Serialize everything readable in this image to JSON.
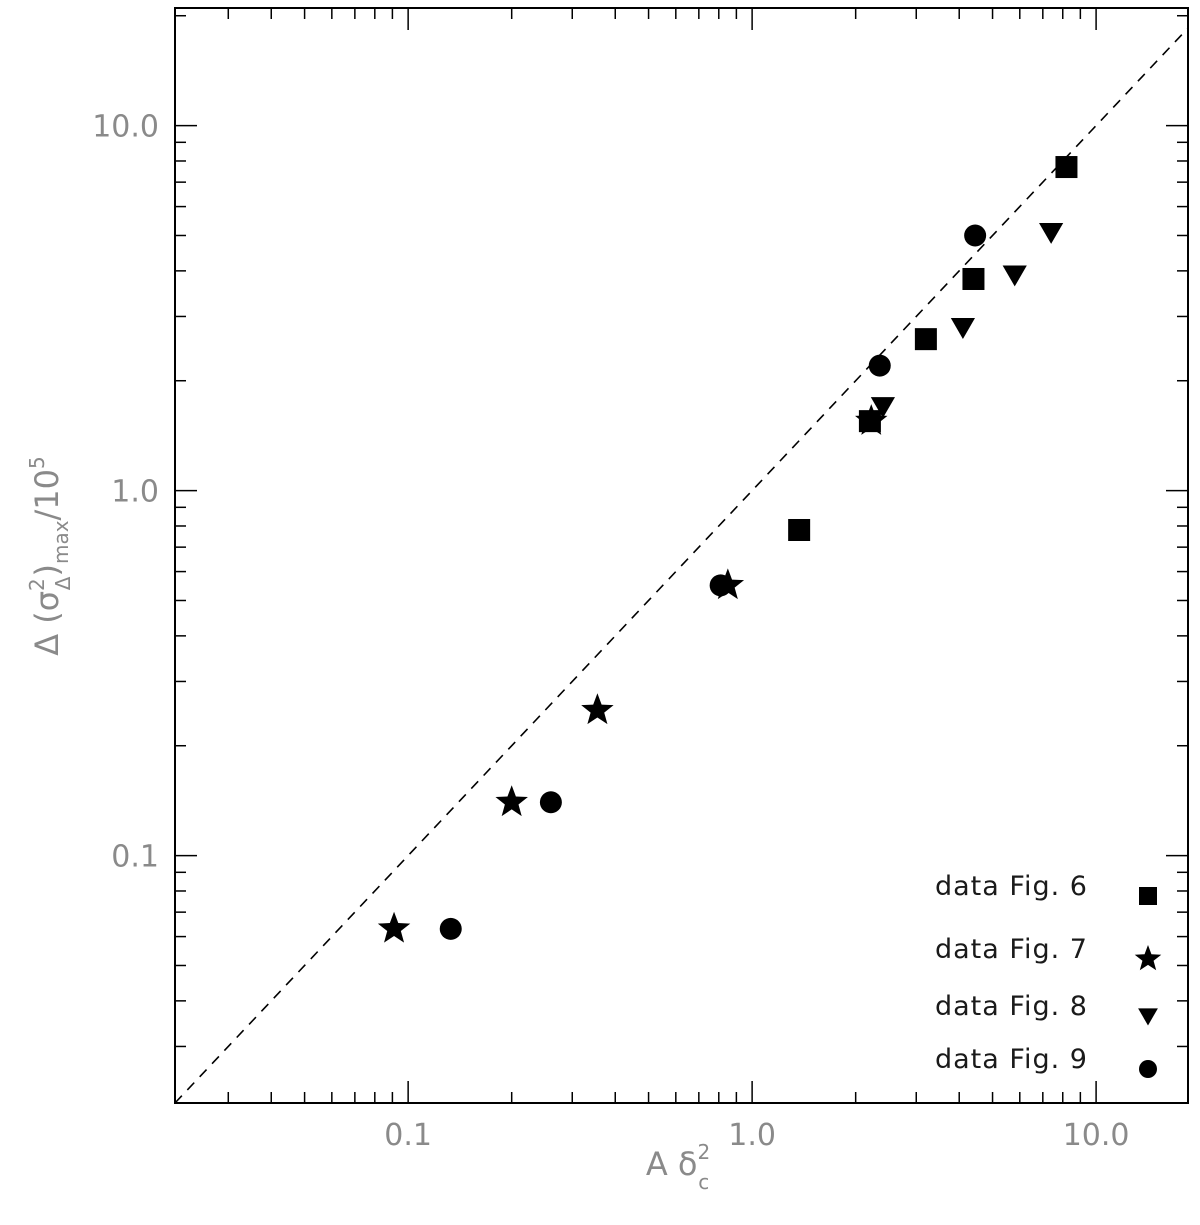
{
  "chart_data": {
    "type": "scatter",
    "x_scale": "log",
    "y_scale": "log",
    "xlim": [
      0.021,
      18.5
    ],
    "ylim": [
      0.021,
      21
    ],
    "grid": false,
    "legend_position": "bottom-right",
    "xlabel": {
      "main": "A δ",
      "sup": "2",
      "sub": "c"
    },
    "ylabel": {
      "prefix": "Δ (σ",
      "sup": "2",
      "sub1": "Δ",
      "mid": ")",
      "sub2": "max",
      "post": "/10",
      "sup2": "5"
    },
    "x_tick_labels": [
      {
        "value": 0.1,
        "label": "0.1"
      },
      {
        "value": 1.0,
        "label": "1.0"
      },
      {
        "value": 10.0,
        "label": "10.0"
      }
    ],
    "y_tick_labels": [
      {
        "value": 0.1,
        "label": "0.1"
      },
      {
        "value": 1.0,
        "label": "1.0"
      },
      {
        "value": 10.0,
        "label": "10.0"
      }
    ],
    "reference_line": {
      "style": "dashed",
      "points": [
        [
          0.021,
          0.021
        ],
        [
          18.5,
          18.5
        ]
      ]
    },
    "series": [
      {
        "name": "data Fig. 6",
        "marker": "square",
        "x": [
          1.37,
          2.2,
          3.2,
          4.4,
          8.2
        ],
        "y": [
          0.78,
          1.55,
          2.6,
          3.8,
          7.7
        ]
      },
      {
        "name": "data Fig. 7",
        "marker": "star",
        "x": [
          0.091,
          0.2,
          0.355,
          0.85,
          2.22
        ],
        "y": [
          0.063,
          0.14,
          0.25,
          0.55,
          1.55
        ]
      },
      {
        "name": "data Fig. 8",
        "marker": "triangle-down",
        "x": [
          2.4,
          4.1,
          5.8,
          7.4
        ],
        "y": [
          1.7,
          2.8,
          3.9,
          5.1
        ]
      },
      {
        "name": "data Fig. 9",
        "marker": "circle",
        "x": [
          0.133,
          0.26,
          0.81,
          2.35,
          4.45
        ],
        "y": [
          0.063,
          0.14,
          0.55,
          2.2,
          5.0
        ]
      }
    ]
  }
}
